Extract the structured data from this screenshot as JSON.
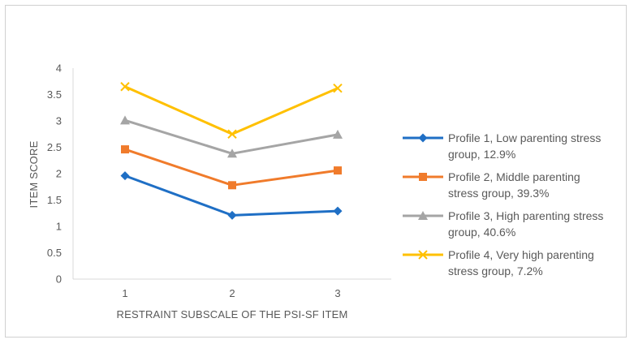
{
  "chart_data": {
    "type": "line",
    "title": "",
    "xlabel": "RESTRAINT SUBSCALE OF THE PSI-SF ITEM",
    "ylabel": "ITEM SCORE",
    "x": [
      "1",
      "2",
      "3"
    ],
    "ylim": [
      0,
      4
    ],
    "yticks": [
      "0",
      "0.5",
      "1",
      "1.5",
      "2",
      "2.5",
      "3",
      "3.5",
      "4"
    ],
    "grid": false,
    "legend_position": "right",
    "series": [
      {
        "name": "Profile 1, Low parenting stress group, 12.9%",
        "name_lines": [
          "Profile 1, Low parenting stress",
          "group, 12.9%"
        ],
        "values": [
          1.96,
          1.21,
          1.29
        ],
        "color": "#1f6fc5",
        "marker": "diamond"
      },
      {
        "name": "Profile 2, Middle parenting stress group, 39.3%",
        "name_lines": [
          "Profile 2, Middle parenting",
          "stress group, 39.3%"
        ],
        "values": [
          2.46,
          1.78,
          2.06
        ],
        "color": "#f07b2b",
        "marker": "square"
      },
      {
        "name": "Profile 3, High parenting stress group, 40.6%",
        "name_lines": [
          "Profile 3, High parenting stress",
          "group, 40.6%"
        ],
        "values": [
          3.01,
          2.38,
          2.74
        ],
        "color": "#a5a5a5",
        "marker": "triangle"
      },
      {
        "name": "Profile 4, Very high parenting stress group, 7.2%",
        "name_lines": [
          "Profile 4, Very high parenting",
          "stress group, 7.2%"
        ],
        "values": [
          3.65,
          2.75,
          3.62
        ],
        "color": "#ffc000",
        "marker": "x"
      }
    ]
  }
}
